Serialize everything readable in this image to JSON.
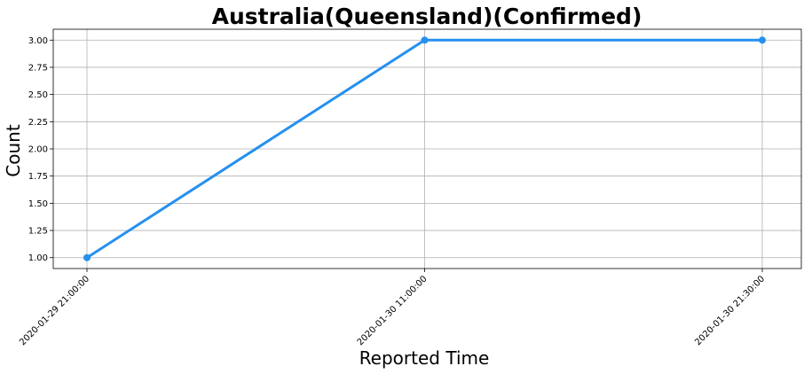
{
  "chart_data": {
    "type": "line",
    "title": "Australia(Queensland)(Confirmed)",
    "xlabel": "Reported Time",
    "ylabel": "Count",
    "categories": [
      "2020-01-29 21:00:00",
      "2020-01-30 11:00:00",
      "2020-01-30 21:30:00"
    ],
    "series": [
      {
        "values": [
          1,
          3,
          3
        ],
        "color": "#2590f0"
      }
    ],
    "ylim": [
      0.9,
      3.1
    ],
    "yticks": [
      "1.00",
      "1.25",
      "1.50",
      "1.75",
      "2.00",
      "2.25",
      "2.50",
      "2.75",
      "3.00"
    ],
    "grid": true,
    "x_tick_rotation_deg": 45
  }
}
